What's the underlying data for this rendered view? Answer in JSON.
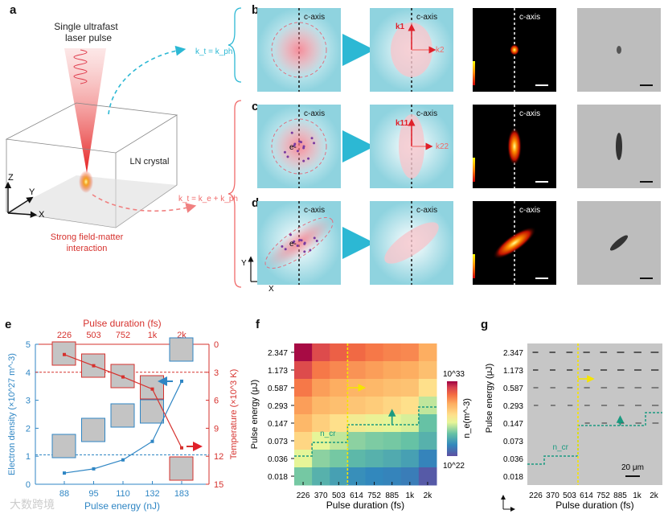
{
  "panel_labels": [
    "a",
    "b",
    "c",
    "d",
    "e",
    "f",
    "g"
  ],
  "panel_a": {
    "pulse_label_1": "Single ultrafast",
    "pulse_label_2": "laser pulse",
    "crystal_label": "LN crystal",
    "interaction_1": "Strong field-matter",
    "interaction_2": "interaction",
    "eq_top": "k_t = k_ph",
    "eq_bottom": "k_t = k_e + k_ph",
    "axis_x": "X",
    "axis_y": "Y",
    "axis_z": "Z"
  },
  "panels_bcd": {
    "c_axis": "c-axis",
    "k1": "k1",
    "k2": "k2",
    "k11": "k11",
    "k22": "k22",
    "electron": "e-",
    "axis_x": "X",
    "axis_y": "Y"
  },
  "colors": {
    "blue": "#2f86c4",
    "red": "#d6322e",
    "teal": "#2a9d8a",
    "yellow": "#f5e400"
  },
  "chart_data": [
    {
      "type": "line",
      "panel": "e",
      "categories": [
        "88",
        "95",
        "110",
        "132",
        "183"
      ],
      "top_categories": [
        "226",
        "503",
        "752",
        "1k",
        "2k"
      ],
      "xlabel": "Pulse energy (nJ)",
      "top_xlabel": "Pulse duration (fs)",
      "ylabel": "Electron density (×10^27 m^-3)",
      "y2label": "Temperature (×10^3 K)",
      "ylim": [
        0,
        5
      ],
      "y2lim": [
        0,
        15
      ],
      "yticks": [
        "0",
        "1",
        "2",
        "3",
        "4",
        "5"
      ],
      "y2ticks": [
        "0",
        "3",
        "6",
        "9",
        "12",
        "15"
      ],
      "series": [
        {
          "name": "Electron density",
          "axis": "left",
          "values": [
            0.4,
            0.55,
            0.87,
            1.53,
            3.68
          ]
        },
        {
          "name": "Temperature",
          "axis": "right",
          "values": [
            1.1,
            2.3,
            3.5,
            4.8,
            11.1
          ]
        }
      ],
      "hlines": [
        {
          "axis": "left",
          "value": 1.05
        },
        {
          "axis": "right",
          "value": 3.0
        }
      ]
    },
    {
      "type": "heatmap",
      "panel": "f",
      "xlabel": "Pulse duration (fs)",
      "ylabel": "Pulse energy (μJ)",
      "x": [
        "226",
        "370",
        "503",
        "614",
        "752",
        "885",
        "1k",
        "2k"
      ],
      "y": [
        "2.347",
        "1.173",
        "0.587",
        "0.293",
        "0.147",
        "0.073",
        "0.036",
        "0.018"
      ],
      "log10_ne": [
        [
          32.8,
          31.5,
          31.0,
          30.8,
          30.5,
          30.3,
          30.2,
          29.5
        ],
        [
          31.5,
          30.5,
          30.2,
          30.0,
          29.8,
          29.6,
          29.5,
          29.0
        ],
        [
          30.5,
          29.8,
          29.5,
          29.3,
          29.2,
          29.0,
          28.9,
          28.0
        ],
        [
          29.8,
          29.2,
          29.0,
          28.8,
          28.6,
          28.3,
          28.0,
          26.5
        ],
        [
          29.2,
          28.5,
          28.0,
          27.5,
          27.2,
          27.0,
          26.8,
          25.3
        ],
        [
          28.3,
          27.0,
          26.5,
          25.8,
          25.6,
          25.5,
          25.3,
          24.8
        ],
        [
          27.0,
          25.8,
          25.5,
          25.0,
          24.8,
          24.6,
          24.3,
          23.5
        ],
        [
          25.5,
          24.8,
          24.3,
          23.8,
          23.6,
          23.5,
          23.3,
          22.3
        ]
      ],
      "colorbar_label": "n_e(m^-3)",
      "colorbar_max": "10^33",
      "colorbar_min": "10^22",
      "ncr_label": "n_cr"
    },
    {
      "type": "heatmap",
      "panel": "g",
      "xlabel": "Pulse duration (fs)",
      "ylabel": "Pulse energy (μJ)",
      "x": [
        "226",
        "370",
        "503",
        "614",
        "752",
        "885",
        "1k",
        "2k"
      ],
      "y": [
        "2.347",
        "1.173",
        "0.587",
        "0.293",
        "0.147",
        "0.073",
        "0.036",
        "0.018"
      ],
      "ncr_label": "n_cr",
      "scale_bar": "20 μm"
    }
  ],
  "watermark": "大数跨境"
}
